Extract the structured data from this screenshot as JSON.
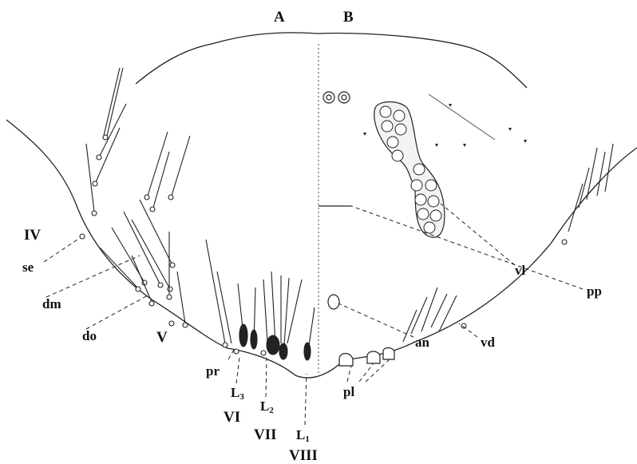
{
  "panels": {
    "left": "A",
    "right": "B"
  },
  "segments": {
    "s4": "IV",
    "s5": "V",
    "s6": "VI",
    "s7": "VII",
    "s8": "VIII"
  },
  "labels": {
    "se": "se",
    "dm": "dm",
    "do": "do",
    "pr": "pr",
    "l3": "L",
    "l3_sub": "3",
    "l2": "L",
    "l2_sub": "2",
    "l1": "L",
    "l1_sub": "1",
    "pl": "pl",
    "an": "an",
    "vd": "vd",
    "vl": "vl",
    "pp": "pp"
  },
  "colors": {
    "ink": "#111111",
    "paper": "#ffffff"
  }
}
